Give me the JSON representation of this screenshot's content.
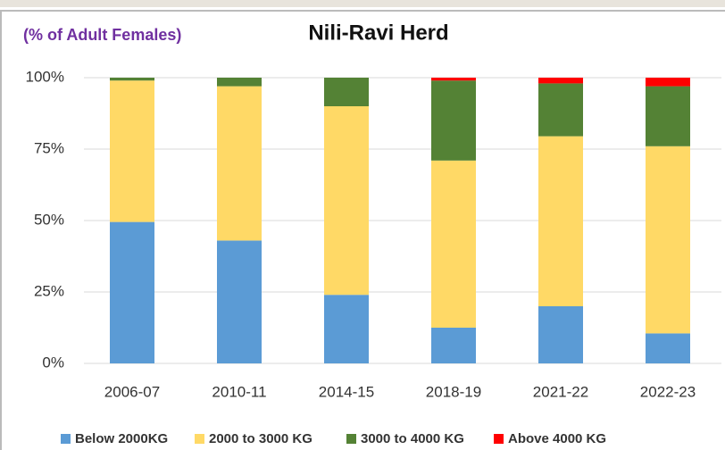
{
  "chart_data": {
    "type": "stacked_bar",
    "title": "Nili-Ravi Herd",
    "subtitle": "(% of Adult Females)",
    "categories": [
      "2006-07",
      "2010-11",
      "2014-15",
      "2018-19",
      "2021-22",
      "2022-23"
    ],
    "series": [
      {
        "name": "Below 2000KG",
        "color": "#5b9bd5",
        "values": [
          49.5,
          43,
          24,
          12.5,
          20,
          10.5
        ]
      },
      {
        "name": "2000 to 3000 KG",
        "color": "#ffd966",
        "values": [
          49.5,
          54,
          66,
          58.5,
          59.5,
          65.5
        ]
      },
      {
        "name": "3000 to 4000 KG",
        "color": "#548235",
        "values": [
          1,
          3,
          10,
          28,
          18.5,
          21
        ]
      },
      {
        "name": "Above 4000 KG",
        "color": "#ff0000",
        "values": [
          0,
          0,
          0,
          1,
          2,
          3
        ]
      }
    ],
    "ylim": [
      0,
      100
    ],
    "yticks": [
      {
        "value": 0,
        "label": "0%"
      },
      {
        "value": 25,
        "label": "25%"
      },
      {
        "value": 50,
        "label": "50%"
      },
      {
        "value": 75,
        "label": "75%"
      },
      {
        "value": 100,
        "label": "100%"
      }
    ],
    "legend": "bottom"
  }
}
